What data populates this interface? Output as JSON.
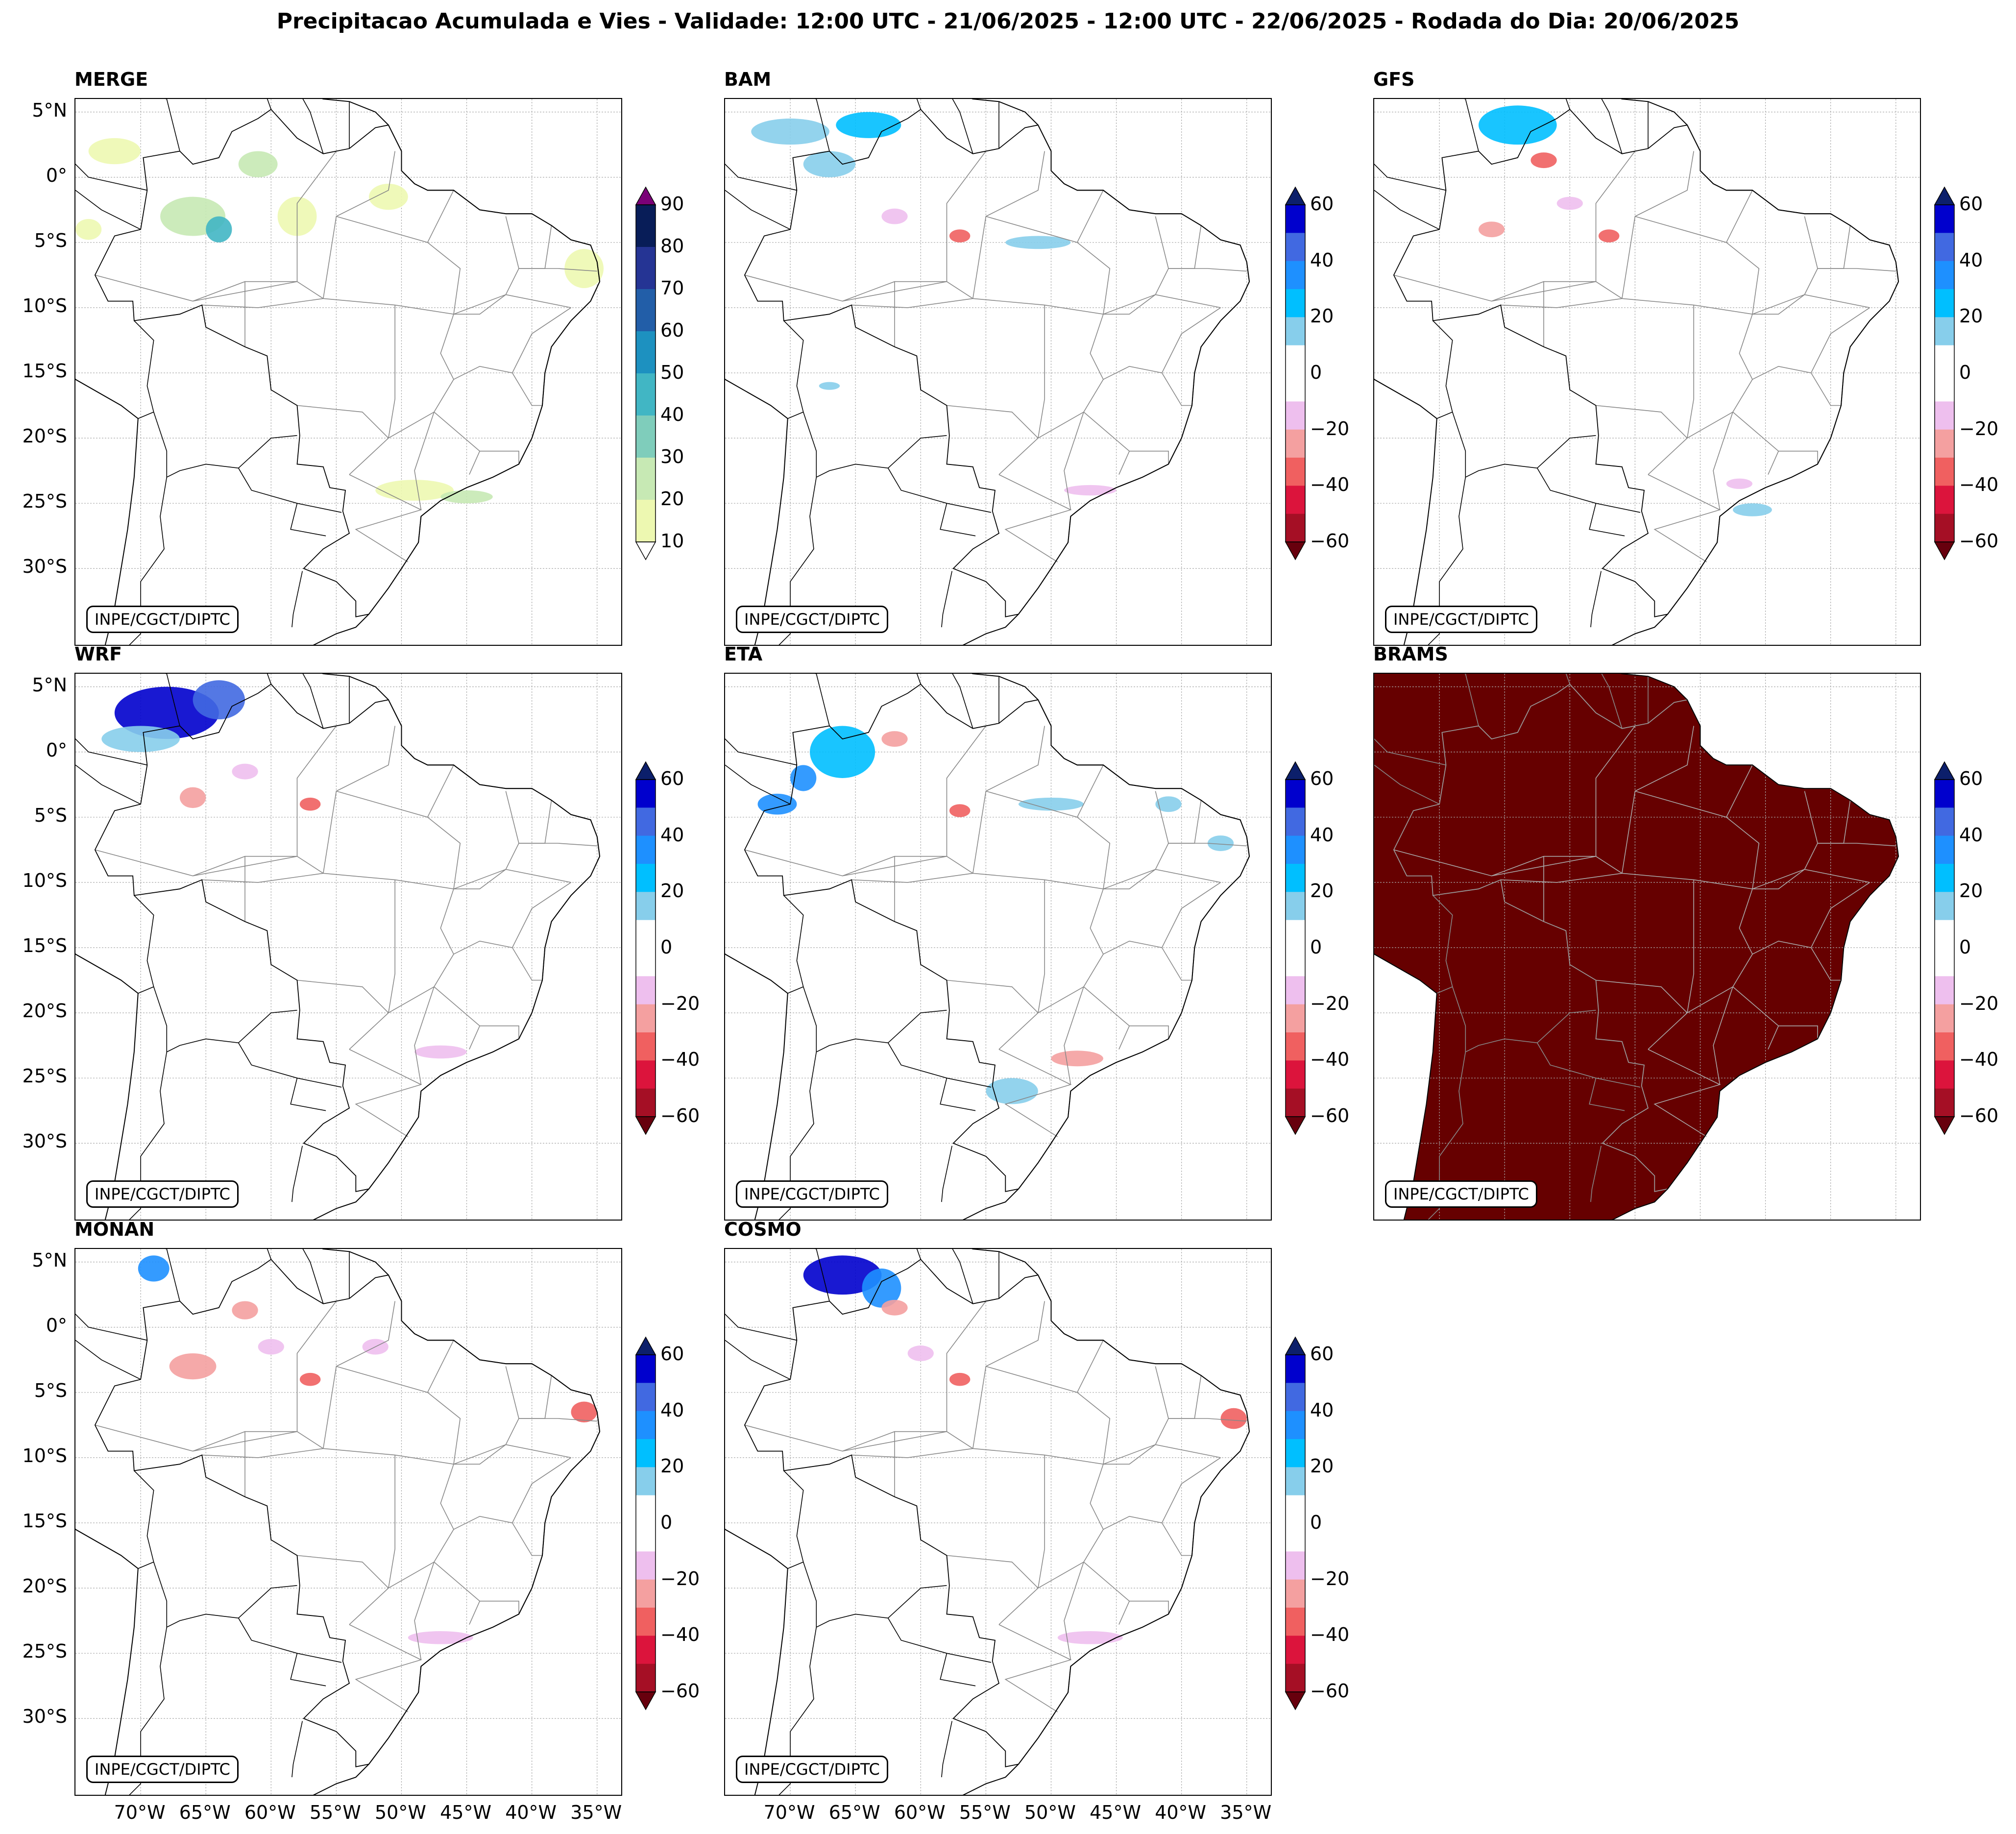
{
  "title": "Precipitacao Acumulada e Vies - Validade: 12:00 UTC - 21/06/2025 - 12:00 UTC - 22/06/2025 - Rodada do Dia: 20/06/2025",
  "credit": "INPE/CGCT/DIPTC",
  "lat_labels": [
    "5°N",
    "0°",
    "5°S",
    "10°S",
    "15°S",
    "20°S",
    "25°S",
    "30°S"
  ],
  "lon_labels": [
    "70°W",
    "65°W",
    "60°W",
    "55°W",
    "50°W",
    "45°W",
    "40°W",
    "35°W"
  ],
  "panels": [
    {
      "name": "MERGE",
      "kind": "accum"
    },
    {
      "name": "BAM",
      "kind": "bias"
    },
    {
      "name": "GFS",
      "kind": "bias"
    },
    {
      "name": "WRF",
      "kind": "bias"
    },
    {
      "name": "ETA",
      "kind": "bias"
    },
    {
      "name": "BRAMS",
      "kind": "bias",
      "filled": true
    },
    {
      "name": "MONAN",
      "kind": "bias"
    },
    {
      "name": "COSMO",
      "kind": "bias"
    }
  ],
  "colorbars": {
    "accum": {
      "ticks": [
        "90",
        "80",
        "70",
        "60",
        "50",
        "40",
        "30",
        "20",
        "10"
      ],
      "colors": [
        "#081d58",
        "#253494",
        "#225ea8",
        "#1d91c0",
        "#41b6c4",
        "#7fcdbb",
        "#c7e9b4",
        "#edf8b1"
      ],
      "over_color": "#7a0177",
      "under_color": "#ffffff"
    },
    "bias": {
      "ticks": [
        "60",
        "40",
        "20",
        "0",
        "−20",
        "−40",
        "−60"
      ],
      "colors": [
        "#0000cd",
        "#4169e1",
        "#1e90ff",
        "#00bfff",
        "#87ceeb",
        "#ffffff",
        "#ffffff",
        "#eebfee",
        "#f4a0a0",
        "#f06060",
        "#dc143c",
        "#a50f25"
      ],
      "over_color": "#0c1f6b",
      "under_color": "#67000d"
    }
  },
  "colors": {
    "brams_fill": "#660000",
    "coast": "#000000",
    "state_borders": "#888888",
    "grid": "#aaaaaa"
  }
}
